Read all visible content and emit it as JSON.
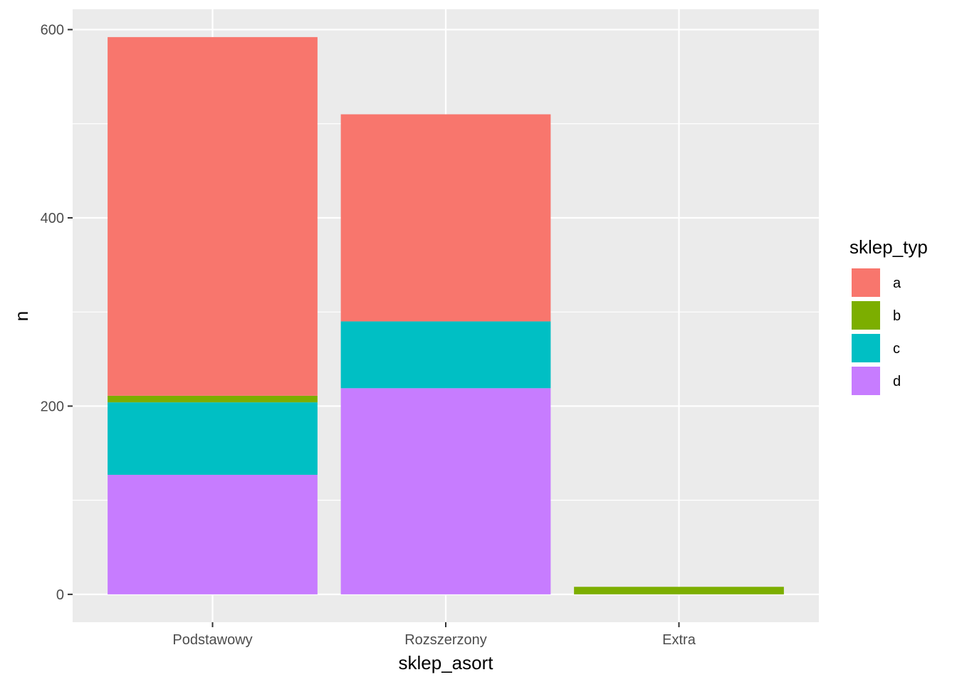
{
  "chart_data": {
    "type": "bar",
    "stacked": true,
    "title": "",
    "xlabel": "sklep_asort",
    "ylabel": "n",
    "categories": [
      "Podstawowy",
      "Rozszerzony",
      "Extra"
    ],
    "ylim": [
      -29.6,
      621.6
    ],
    "yticks": [
      0,
      200,
      400,
      600
    ],
    "grid": true,
    "legend": {
      "title": "sklep_typ",
      "position": "right"
    },
    "stack_order_bottom_to_top": [
      "d",
      "c",
      "b",
      "a"
    ],
    "series": [
      {
        "name": "a",
        "color": "#F8766D",
        "values": [
          381,
          220,
          0
        ]
      },
      {
        "name": "b",
        "color": "#7CAE00",
        "values": [
          7,
          0,
          8
        ]
      },
      {
        "name": "c",
        "color": "#00BFC4",
        "values": [
          77,
          71,
          0
        ]
      },
      {
        "name": "d",
        "color": "#C77CFF",
        "values": [
          127,
          219,
          0
        ]
      }
    ]
  }
}
